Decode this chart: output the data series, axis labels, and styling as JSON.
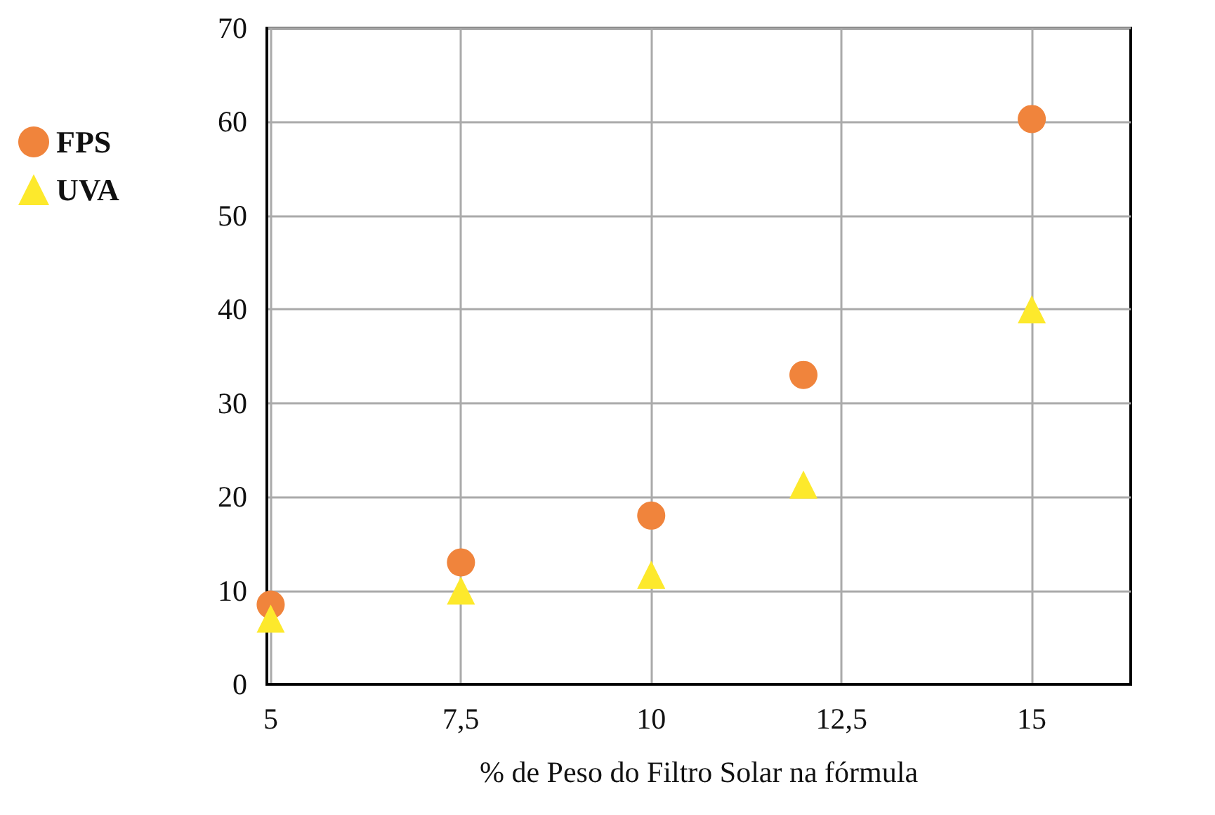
{
  "chart_data": {
    "type": "scatter",
    "xlabel": "% de Peso do Filtro Solar na fórmula",
    "x": [
      5,
      7.5,
      10,
      12,
      15
    ],
    "series": [
      {
        "name": "FPS",
        "color": "#f0843c",
        "marker": "circle",
        "values": [
          8.5,
          13,
          18,
          33,
          60.3
        ]
      },
      {
        "name": "UVA",
        "color": "#fde92c",
        "marker": "triangle",
        "values": [
          7,
          10,
          11.7,
          21.3,
          40
        ]
      }
    ],
    "xlim": [
      4.95,
      16.3
    ],
    "xticks": [
      5,
      {
        "value": 7.5,
        "label": "7,5"
      },
      10,
      {
        "value": 12.5,
        "label": "12,5"
      },
      15
    ],
    "ylim": [
      0,
      70
    ],
    "yticks": [
      0,
      10,
      20,
      30,
      40,
      50,
      60,
      70
    ],
    "grid": true,
    "legend": "left"
  }
}
